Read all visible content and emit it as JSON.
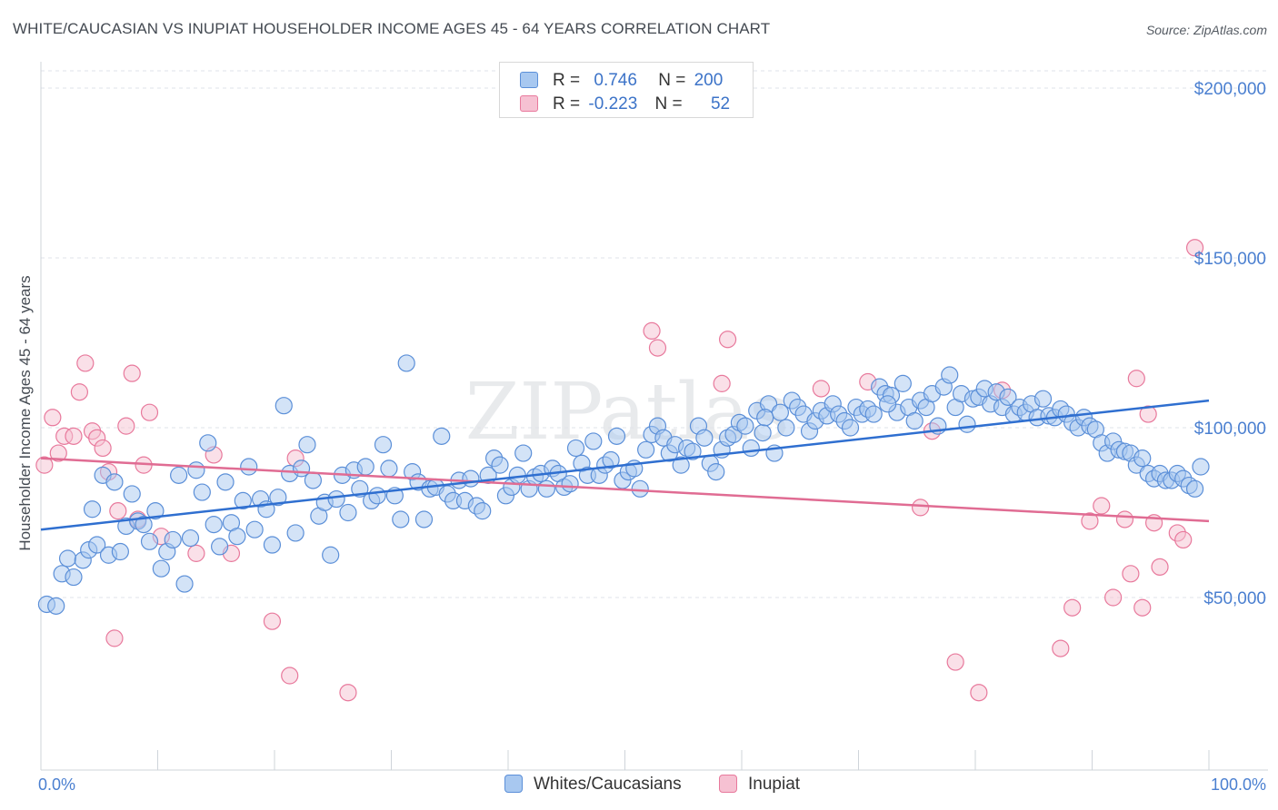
{
  "title": "WHITE/CAUCASIAN VS INUPIAT HOUSEHOLDER INCOME AGES 45 - 64 YEARS CORRELATION CHART",
  "source": "Source: ZipAtlas.com",
  "watermark": "ZIPatlas",
  "legend": {
    "r_label": "R =",
    "n_label": "N =",
    "rows": [
      {
        "r": "0.746",
        "n": "200",
        "color": "#a8c8f0"
      },
      {
        "r": "-0.223",
        "n": "52",
        "color": "#f6b8cb"
      }
    ]
  },
  "colors": {
    "blue_fill": "#a8c8f0",
    "blue_stroke": "#5b8fd8",
    "blue_line": "#2f6fd0",
    "pink_fill": "#f6c1d2",
    "pink_stroke": "#e8799c",
    "pink_line": "#e06c93",
    "axis_text": "#4a7fd0",
    "grid": "#dfe3e8"
  },
  "chart_data": {
    "type": "scatter",
    "title": "WHITE/CAUCASIAN VS INUPIAT HOUSEHOLDER INCOME AGES 45 - 64 YEARS CORRELATION CHART",
    "xlabel": "",
    "ylabel": "Householder Income Ages 45 - 64 years",
    "xlim": [
      0,
      100
    ],
    "ylim": [
      5000,
      210000
    ],
    "x_tick_labels": [
      "0.0%",
      "100.0%"
    ],
    "y_ticks": [
      50000,
      100000,
      150000,
      200000
    ],
    "y_tick_labels": [
      "$50,000",
      "$100,000",
      "$150,000",
      "$200,000"
    ],
    "grid": true,
    "legend_position": "top-center",
    "series": [
      {
        "name": "Whites/Caucasians",
        "r": 0.746,
        "n": 200,
        "trend": {
          "x": [
            0,
            100
          ],
          "y": [
            70000,
            108000
          ]
        },
        "points": [
          [
            0.5,
            48000
          ],
          [
            1.3,
            47500
          ],
          [
            1.8,
            57000
          ],
          [
            2.3,
            61500
          ],
          [
            2.8,
            56000
          ],
          [
            3.6,
            61000
          ],
          [
            4.1,
            64000
          ],
          [
            4.4,
            76000
          ],
          [
            4.8,
            65500
          ],
          [
            5.3,
            86000
          ],
          [
            5.8,
            62500
          ],
          [
            6.3,
            84000
          ],
          [
            6.8,
            63500
          ],
          [
            7.3,
            71000
          ],
          [
            7.8,
            80500
          ],
          [
            8.3,
            72500
          ],
          [
            8.8,
            71500
          ],
          [
            9.3,
            66500
          ],
          [
            9.8,
            75500
          ],
          [
            10.3,
            58500
          ],
          [
            10.8,
            63500
          ],
          [
            11.3,
            67000
          ],
          [
            11.8,
            86000
          ],
          [
            12.3,
            54000
          ],
          [
            12.8,
            67500
          ],
          [
            13.3,
            87500
          ],
          [
            13.8,
            81000
          ],
          [
            14.3,
            95500
          ],
          [
            14.8,
            71500
          ],
          [
            15.3,
            65000
          ],
          [
            15.8,
            84000
          ],
          [
            16.3,
            72000
          ],
          [
            16.8,
            68000
          ],
          [
            17.3,
            78500
          ],
          [
            17.8,
            88500
          ],
          [
            18.3,
            70000
          ],
          [
            18.8,
            79000
          ],
          [
            19.3,
            76000
          ],
          [
            19.8,
            65500
          ],
          [
            20.3,
            79500
          ],
          [
            20.8,
            106500
          ],
          [
            21.3,
            86500
          ],
          [
            21.8,
            69000
          ],
          [
            22.3,
            88000
          ],
          [
            22.8,
            95000
          ],
          [
            23.3,
            84500
          ],
          [
            23.8,
            74000
          ],
          [
            24.3,
            78000
          ],
          [
            24.8,
            62500
          ],
          [
            25.3,
            79000
          ],
          [
            25.8,
            86000
          ],
          [
            26.3,
            75000
          ],
          [
            26.8,
            87500
          ],
          [
            27.3,
            82000
          ],
          [
            27.8,
            88500
          ],
          [
            28.3,
            78500
          ],
          [
            28.8,
            80000
          ],
          [
            29.3,
            95000
          ],
          [
            29.8,
            88000
          ],
          [
            30.3,
            80000
          ],
          [
            30.8,
            73000
          ],
          [
            31.3,
            119000
          ],
          [
            31.8,
            87000
          ],
          [
            32.3,
            84000
          ],
          [
            32.8,
            73000
          ],
          [
            33.3,
            82000
          ],
          [
            33.8,
            82500
          ],
          [
            34.3,
            97500
          ],
          [
            34.8,
            80500
          ],
          [
            35.3,
            78500
          ],
          [
            35.8,
            84500
          ],
          [
            36.3,
            78500
          ],
          [
            36.8,
            85000
          ],
          [
            37.3,
            77000
          ],
          [
            37.8,
            75500
          ],
          [
            38.3,
            86000
          ],
          [
            38.8,
            91000
          ],
          [
            39.3,
            89000
          ],
          [
            39.8,
            80000
          ],
          [
            40.3,
            82500
          ],
          [
            40.8,
            86000
          ],
          [
            41.3,
            92500
          ],
          [
            41.8,
            82000
          ],
          [
            42.3,
            85500
          ],
          [
            42.8,
            86500
          ],
          [
            43.3,
            82000
          ],
          [
            43.8,
            88000
          ],
          [
            44.3,
            86500
          ],
          [
            44.8,
            82500
          ],
          [
            45.3,
            83500
          ],
          [
            45.8,
            94000
          ],
          [
            46.3,
            89500
          ],
          [
            46.8,
            86000
          ],
          [
            47.3,
            96000
          ],
          [
            47.8,
            86000
          ],
          [
            48.3,
            89000
          ],
          [
            48.8,
            90500
          ],
          [
            49.3,
            97500
          ],
          [
            49.8,
            84500
          ],
          [
            50.3,
            87000
          ],
          [
            50.8,
            88000
          ],
          [
            51.3,
            82000
          ],
          [
            51.8,
            93500
          ],
          [
            52.3,
            98000
          ],
          [
            52.8,
            100500
          ],
          [
            53.3,
            97000
          ],
          [
            53.8,
            92500
          ],
          [
            54.3,
            95000
          ],
          [
            54.8,
            89000
          ],
          [
            55.3,
            94000
          ],
          [
            55.8,
            93000
          ],
          [
            56.3,
            100500
          ],
          [
            56.8,
            97000
          ],
          [
            57.3,
            89500
          ],
          [
            57.8,
            87000
          ],
          [
            58.3,
            93500
          ],
          [
            58.8,
            97000
          ],
          [
            59.3,
            98000
          ],
          [
            59.8,
            101500
          ],
          [
            60.3,
            100500
          ],
          [
            60.8,
            94000
          ],
          [
            61.3,
            105000
          ],
          [
            61.8,
            98500
          ],
          [
            62.3,
            107000
          ],
          [
            62.8,
            92500
          ],
          [
            63.3,
            104500
          ],
          [
            63.8,
            100000
          ],
          [
            64.3,
            108000
          ],
          [
            64.8,
            106000
          ],
          [
            65.3,
            104000
          ],
          [
            65.8,
            99000
          ],
          [
            66.3,
            102000
          ],
          [
            66.8,
            105000
          ],
          [
            67.3,
            103500
          ],
          [
            67.8,
            107000
          ],
          [
            68.3,
            104000
          ],
          [
            68.8,
            102000
          ],
          [
            69.3,
            100000
          ],
          [
            69.8,
            106000
          ],
          [
            70.3,
            104000
          ],
          [
            70.8,
            105500
          ],
          [
            71.3,
            104000
          ],
          [
            71.8,
            112000
          ],
          [
            72.3,
            110000
          ],
          [
            72.8,
            109500
          ],
          [
            73.3,
            104500
          ],
          [
            73.8,
            113000
          ],
          [
            74.3,
            106000
          ],
          [
            74.8,
            102000
          ],
          [
            75.3,
            108000
          ],
          [
            75.8,
            106000
          ],
          [
            76.3,
            110000
          ],
          [
            76.8,
            100500
          ],
          [
            77.3,
            112000
          ],
          [
            77.8,
            115500
          ],
          [
            78.3,
            106000
          ],
          [
            78.8,
            110000
          ],
          [
            79.3,
            101000
          ],
          [
            79.8,
            108500
          ],
          [
            80.3,
            109000
          ],
          [
            80.8,
            111500
          ],
          [
            81.3,
            107000
          ],
          [
            81.8,
            110500
          ],
          [
            82.3,
            106000
          ],
          [
            82.8,
            109000
          ],
          [
            83.3,
            104000
          ],
          [
            83.8,
            106000
          ],
          [
            84.3,
            104500
          ],
          [
            84.8,
            107000
          ],
          [
            85.3,
            103000
          ],
          [
            85.8,
            108500
          ],
          [
            86.3,
            103500
          ],
          [
            86.8,
            103000
          ],
          [
            87.3,
            105500
          ],
          [
            87.8,
            104000
          ],
          [
            88.3,
            101500
          ],
          [
            88.8,
            100000
          ],
          [
            89.3,
            103000
          ],
          [
            89.8,
            100500
          ],
          [
            90.3,
            99500
          ],
          [
            90.8,
            95500
          ],
          [
            91.3,
            92500
          ],
          [
            91.8,
            96000
          ],
          [
            92.3,
            93500
          ],
          [
            92.8,
            93000
          ],
          [
            93.3,
            92500
          ],
          [
            93.8,
            89000
          ],
          [
            94.3,
            91000
          ],
          [
            94.8,
            86500
          ],
          [
            95.3,
            85000
          ],
          [
            95.8,
            86500
          ],
          [
            96.3,
            84500
          ],
          [
            96.8,
            84500
          ],
          [
            97.3,
            86500
          ],
          [
            97.8,
            85000
          ],
          [
            98.3,
            83000
          ],
          [
            98.8,
            82000
          ],
          [
            99.3,
            88500
          ],
          [
            62.0,
            103000
          ],
          [
            72.5,
            107000
          ]
        ]
      },
      {
        "name": "Inupiat",
        "r": -0.223,
        "n": 52,
        "trend": {
          "x": [
            0,
            100
          ],
          "y": [
            91000,
            72500
          ]
        },
        "points": [
          [
            0.3,
            89000
          ],
          [
            1.0,
            103000
          ],
          [
            1.5,
            92500
          ],
          [
            2.0,
            97500
          ],
          [
            2.8,
            97500
          ],
          [
            3.3,
            110500
          ],
          [
            3.8,
            119000
          ],
          [
            4.4,
            99000
          ],
          [
            4.8,
            97000
          ],
          [
            5.3,
            94000
          ],
          [
            5.8,
            87000
          ],
          [
            6.3,
            38000
          ],
          [
            6.6,
            75500
          ],
          [
            7.3,
            100500
          ],
          [
            7.8,
            116000
          ],
          [
            8.3,
            73000
          ],
          [
            8.8,
            89000
          ],
          [
            9.3,
            104500
          ],
          [
            10.3,
            68000
          ],
          [
            13.3,
            63000
          ],
          [
            14.8,
            92000
          ],
          [
            16.3,
            63000
          ],
          [
            19.8,
            43000
          ],
          [
            21.3,
            27000
          ],
          [
            21.8,
            91000
          ],
          [
            26.3,
            22000
          ],
          [
            52.3,
            128500
          ],
          [
            52.8,
            123500
          ],
          [
            58.3,
            113000
          ],
          [
            58.8,
            126000
          ],
          [
            66.8,
            111500
          ],
          [
            70.8,
            113500
          ],
          [
            75.3,
            76500
          ],
          [
            76.3,
            99000
          ],
          [
            78.3,
            31000
          ],
          [
            80.3,
            22000
          ],
          [
            82.3,
            111000
          ],
          [
            87.3,
            35000
          ],
          [
            88.3,
            47000
          ],
          [
            89.8,
            72500
          ],
          [
            90.8,
            77000
          ],
          [
            91.8,
            50000
          ],
          [
            92.8,
            73000
          ],
          [
            93.3,
            57000
          ],
          [
            93.8,
            114500
          ],
          [
            94.3,
            47000
          ],
          [
            94.8,
            104000
          ],
          [
            95.3,
            72000
          ],
          [
            95.8,
            59000
          ],
          [
            97.3,
            69000
          ],
          [
            97.8,
            67000
          ],
          [
            98.8,
            153000
          ]
        ]
      }
    ]
  }
}
